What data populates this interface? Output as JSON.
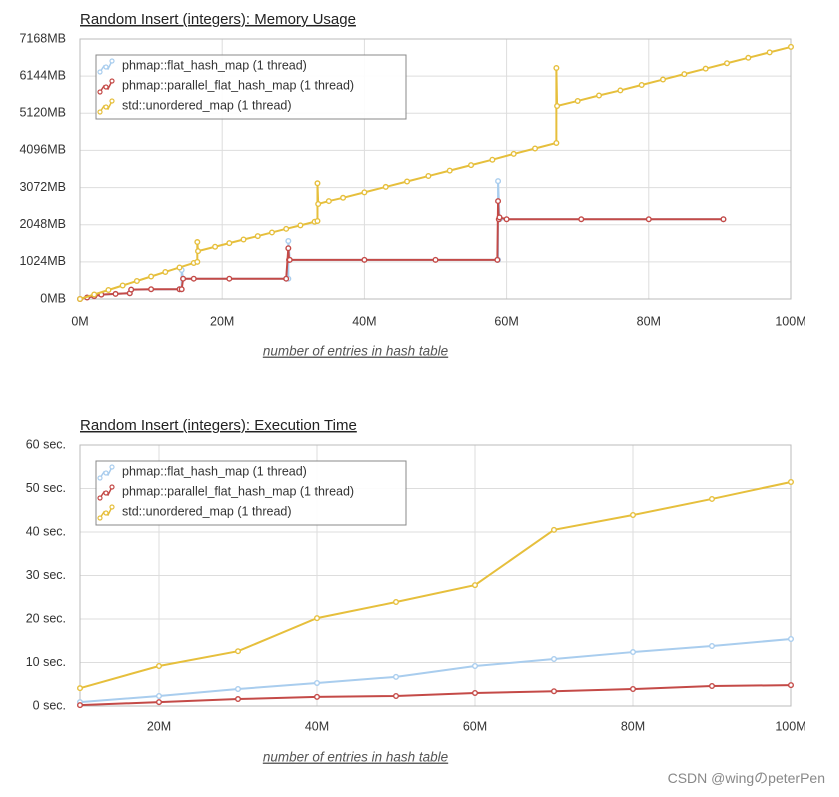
{
  "chart_data": [
    {
      "type": "line",
      "title": "Random Insert (integers): Memory Usage",
      "x_label": "number of entries in hash table",
      "xlim": [
        0,
        100
      ],
      "xticks": [
        {
          "value": 0,
          "label": "0M"
        },
        {
          "value": 20,
          "label": "20M"
        },
        {
          "value": 40,
          "label": "40M"
        },
        {
          "value": 60,
          "label": "60M"
        },
        {
          "value": 80,
          "label": "80M"
        },
        {
          "value": 100,
          "label": "100M"
        }
      ],
      "ylim": [
        0,
        7168
      ],
      "yticks": [
        {
          "value": 0,
          "label": "0MB"
        },
        {
          "value": 1024,
          "label": "1024MB"
        },
        {
          "value": 2048,
          "label": "2048MB"
        },
        {
          "value": 3072,
          "label": "3072MB"
        },
        {
          "value": 4096,
          "label": "4096MB"
        },
        {
          "value": 5120,
          "label": "5120MB"
        },
        {
          "value": 6144,
          "label": "6144MB"
        },
        {
          "value": 7168,
          "label": "7168MB"
        }
      ],
      "grid": true,
      "legend": "top-left",
      "series": [
        {
          "name": "phmap::flat_hash_map (1 thread)",
          "color": "#a9cdee",
          "x": [
            0,
            3,
            7,
            7.2,
            14,
            14.3,
            14.3,
            14.5,
            29,
            29.3,
            29.3,
            29.5,
            58.7,
            58.8,
            58.8,
            59,
            90.5
          ],
          "values": [
            0,
            120,
            160,
            260,
            270,
            270,
            800,
            560,
            560,
            560,
            1600,
            1080,
            1080,
            1080,
            3250,
            2200,
            2200
          ]
        },
        {
          "name": "phmap::parallel_flat_hash_map (1 thread)",
          "color": "#c44a47",
          "x": [
            0,
            1,
            2,
            3,
            5,
            7,
            7.2,
            10,
            14,
            14.3,
            14.5,
            16,
            21,
            29,
            29.3,
            29.4,
            29.5,
            40,
            50,
            58.7,
            58.8,
            58.9,
            59,
            60,
            70.5,
            80,
            90.5
          ],
          "values": [
            0,
            40,
            80,
            120,
            140,
            160,
            260,
            270,
            270,
            270,
            560,
            560,
            560,
            560,
            1400,
            1080,
            1080,
            1080,
            1080,
            1080,
            2700,
            2200,
            2250,
            2200,
            2200,
            2200,
            2200
          ]
        },
        {
          "name": "std::unordered_map (1 thread)",
          "color": "#e6bf3c",
          "x": [
            0,
            2,
            4,
            6,
            8,
            10,
            12,
            14,
            16,
            16.5,
            16.5,
            16.6,
            19,
            21,
            23,
            25,
            27,
            29,
            31,
            33,
            33.4,
            33.4,
            33.5,
            35,
            37,
            40,
            43,
            46,
            49,
            52,
            55,
            58,
            61,
            64,
            67,
            67,
            67.1,
            70,
            73,
            76,
            79,
            82,
            85,
            88,
            91,
            94,
            97,
            100
          ],
          "values": [
            0,
            124,
            248,
            372,
            496,
            620,
            745,
            869,
            993,
            1024,
            1570,
            1320,
            1440,
            1540,
            1640,
            1735,
            1835,
            1935,
            2030,
            2130,
            2150,
            3190,
            2620,
            2700,
            2790,
            2940,
            3090,
            3240,
            3390,
            3540,
            3690,
            3840,
            4000,
            4150,
            4300,
            6370,
            5320,
            5460,
            5610,
            5750,
            5900,
            6050,
            6200,
            6350,
            6500,
            6650,
            6800,
            6950
          ]
        }
      ]
    },
    {
      "type": "line",
      "title": "Random Insert (integers): Execution Time",
      "x_label": "number of entries in hash table",
      "xlim": [
        10,
        100
      ],
      "xticks": [
        {
          "value": 20,
          "label": "20M"
        },
        {
          "value": 40,
          "label": "40M"
        },
        {
          "value": 60,
          "label": "60M"
        },
        {
          "value": 80,
          "label": "80M"
        },
        {
          "value": 100,
          "label": "100M"
        }
      ],
      "ylim": [
        0,
        60
      ],
      "yticks": [
        {
          "value": 0,
          "label": "0 sec."
        },
        {
          "value": 10,
          "label": "10 sec."
        },
        {
          "value": 20,
          "label": "20 sec."
        },
        {
          "value": 30,
          "label": "30 sec."
        },
        {
          "value": 40,
          "label": "40 sec."
        },
        {
          "value": 50,
          "label": "50 sec."
        },
        {
          "value": 60,
          "label": "60 sec."
        }
      ],
      "grid": true,
      "legend": "top-left",
      "x": [
        10,
        20,
        30,
        40,
        50,
        60,
        70,
        80,
        90,
        100
      ],
      "series": [
        {
          "name": "phmap::flat_hash_map (1 thread)",
          "color": "#a9cdee",
          "values": [
            0.9,
            2.3,
            3.9,
            5.3,
            6.7,
            9.2,
            10.8,
            12.4,
            13.8,
            15.4
          ]
        },
        {
          "name": "phmap::parallel_flat_hash_map (1 thread)",
          "color": "#c44a47",
          "values": [
            0.2,
            0.9,
            1.6,
            2.1,
            2.3,
            3.0,
            3.4,
            3.9,
            4.6,
            4.8
          ]
        },
        {
          "name": "std::unordered_map (1 thread)",
          "color": "#e6bf3c",
          "values": [
            4.1,
            9.2,
            12.6,
            20.2,
            23.9,
            27.8,
            40.5,
            43.9,
            47.6,
            51.5
          ]
        }
      ]
    }
  ],
  "watermark": "CSDN @wingのpeterPen"
}
